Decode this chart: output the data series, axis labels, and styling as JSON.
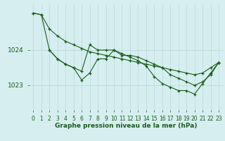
{
  "background_color": "#d6eef0",
  "grid_color": "#b8d8dc",
  "line_color": "#1a5c1a",
  "xlabel": "Graphe pression niveau de la mer (hPa)",
  "xlabel_fontsize": 6.5,
  "ylabel_fontsize": 6.5,
  "tick_fontsize": 5.5,
  "xlim": [
    -0.5,
    23.5
  ],
  "ylim": [
    1022.3,
    1025.3
  ],
  "ytick_values": [
    1023,
    1024
  ],
  "xtick_values": [
    0,
    1,
    2,
    3,
    4,
    5,
    6,
    7,
    8,
    9,
    10,
    11,
    12,
    13,
    14,
    15,
    16,
    17,
    18,
    19,
    20,
    21,
    22,
    23
  ],
  "series": [
    {
      "x": [
        0,
        1,
        2,
        3,
        4,
        5,
        6,
        7,
        8,
        9,
        10,
        11,
        12,
        13,
        14,
        15,
        16,
        17,
        18,
        19,
        20,
        21,
        22,
        23
      ],
      "y": [
        1025.05,
        1025.0,
        1024.6,
        1024.4,
        1024.25,
        1024.15,
        1024.05,
        1023.95,
        1023.9,
        1023.85,
        1023.8,
        1023.75,
        1023.7,
        1023.65,
        1023.6,
        1023.55,
        1023.5,
        1023.45,
        1023.4,
        1023.35,
        1023.3,
        1023.35,
        1023.5,
        1023.65
      ]
    },
    {
      "x": [
        0,
        1,
        2,
        3,
        4,
        5,
        6,
        7,
        8,
        9,
        10,
        11,
        12,
        13,
        14,
        15,
        16,
        17,
        18,
        19,
        20,
        21,
        22,
        23
      ],
      "y": [
        1025.05,
        1025.0,
        1024.0,
        1023.75,
        1023.6,
        1023.5,
        1023.4,
        1024.15,
        1024.0,
        1024.0,
        1024.0,
        1023.85,
        1023.85,
        1023.8,
        1023.7,
        1023.6,
        1023.5,
        1023.3,
        1023.2,
        1023.1,
        1023.0,
        1023.1,
        1023.3,
        1023.65
      ]
    },
    {
      "x": [
        2,
        3,
        4,
        5,
        6,
        7,
        8,
        9,
        10,
        11,
        12,
        13,
        14,
        15,
        16,
        17,
        18,
        19,
        20,
        21,
        22,
        23
      ],
      "y": [
        1024.0,
        1023.75,
        1023.6,
        1023.5,
        1023.15,
        1023.35,
        1023.75,
        1023.75,
        1024.0,
        1023.9,
        1023.8,
        1023.7,
        1023.55,
        1023.25,
        1023.05,
        1022.95,
        1022.85,
        1022.85,
        1022.75,
        1023.05,
        1023.35,
        1023.65
      ]
    }
  ]
}
